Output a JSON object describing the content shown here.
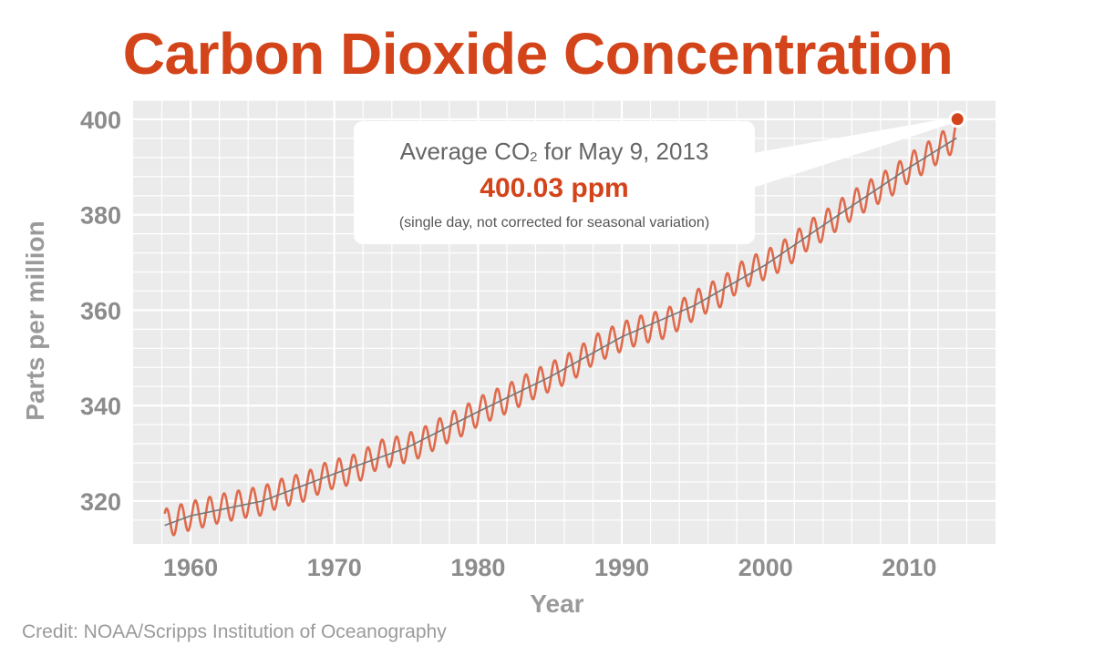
{
  "chart_data": {
    "type": "line",
    "title": "Carbon Dioxide Concentration",
    "xlabel": "Year",
    "ylabel": "Parts per million",
    "xlim": [
      1956,
      2016
    ],
    "ylim": [
      311,
      404
    ],
    "x_ticks": [
      1960,
      1970,
      1980,
      1990,
      2000,
      2010
    ],
    "y_ticks": [
      320,
      340,
      360,
      380,
      400
    ],
    "grid": true,
    "series": [
      {
        "description_role": "monthly",
        "color": "#e06a4c",
        "x": [
          1958.2,
          1959,
          1960,
          1961,
          1962,
          1963,
          1964,
          1965,
          1966,
          1967,
          1968,
          1969,
          1970,
          1971,
          1972,
          1973,
          1974,
          1975,
          1976,
          1977,
          1978,
          1979,
          1980,
          1981,
          1982,
          1983,
          1984,
          1985,
          1986,
          1987,
          1988,
          1989,
          1990,
          1991,
          1992,
          1993,
          1994,
          1995,
          1996,
          1997,
          1998,
          1999,
          2000,
          2001,
          2002,
          2003,
          2004,
          2005,
          2006,
          2007,
          2008,
          2009,
          2010,
          2011,
          2012,
          2013.3
        ],
        "y": [
          315.3,
          316.0,
          316.9,
          317.6,
          318.4,
          319.0,
          319.6,
          320.0,
          321.4,
          322.2,
          323.0,
          324.6,
          325.7,
          326.3,
          327.5,
          329.7,
          330.2,
          331.1,
          332.1,
          333.8,
          335.4,
          336.8,
          338.7,
          340.1,
          341.4,
          343.0,
          344.6,
          346.0,
          347.4,
          349.2,
          351.6,
          353.1,
          354.4,
          355.6,
          356.4,
          357.1,
          358.9,
          360.9,
          362.6,
          363.8,
          366.6,
          368.3,
          369.5,
          371.1,
          373.2,
          375.8,
          377.5,
          379.8,
          381.9,
          383.8,
          385.6,
          387.4,
          389.9,
          391.6,
          393.8,
          396.5
        ],
        "seasonal_amplitude_ppm": 3.0
      },
      {
        "description_role": "trend",
        "color": "#777777",
        "x": [
          1958.2,
          1960,
          1965,
          1970,
          1975,
          1980,
          1985,
          1990,
          1995,
          2000,
          2005,
          2010,
          2013.3
        ],
        "y": [
          314.9,
          316.9,
          320.0,
          325.7,
          331.1,
          338.7,
          346.0,
          354.4,
          360.9,
          369.5,
          379.8,
          389.9,
          396.1
        ]
      }
    ],
    "highlight_point": {
      "x": 2013.35,
      "y": 400.03,
      "color": "#d4441a"
    }
  },
  "callout": {
    "line1_prefix": "Average CO",
    "line1_sub": "2",
    "line1_suffix": " for May 9, 2013",
    "value": "400.03 ppm",
    "note": "(single day, not corrected for seasonal variation)"
  },
  "credit": "Credit: NOAA/Scripps Institution of Oceanography",
  "colors": {
    "title": "#d4441a",
    "plot_background": "#ebebeb",
    "grid": "#ffffff",
    "tick_label": "#8c8c8c",
    "axis_label": "#9a9a9a"
  }
}
